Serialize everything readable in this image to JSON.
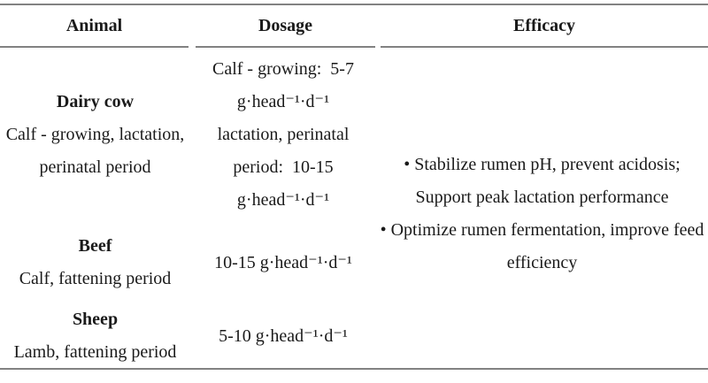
{
  "colors": {
    "text": "#1a1a1a",
    "rule": "#828282"
  },
  "table": {
    "headers": [
      {
        "label": "Animal"
      },
      {
        "label": "Dosage"
      },
      {
        "label": "Efficacy"
      }
    ],
    "rows": [
      {
        "animal": {
          "name": "Dairy cow",
          "detail_lines": [
            "Calf - growing, lactation,",
            "perinatal period"
          ]
        },
        "dosage_lines": [
          "Calf - growing:  5-7",
          "g·head⁻¹·d⁻¹",
          "lactation, perinatal",
          "period:  10-15",
          "g·head⁻¹·d⁻¹"
        ]
      },
      {
        "animal": {
          "name": "Beef",
          "detail_lines": [
            "Calf, fattening period"
          ]
        },
        "dosage_lines": [
          "10-15 g·head⁻¹·d⁻¹"
        ]
      },
      {
        "animal": {
          "name": "Sheep",
          "detail_lines": [
            "Lamb, fattening period"
          ]
        },
        "dosage_lines": [
          "5-10 g·head⁻¹·d⁻¹"
        ]
      }
    ],
    "efficacy_lines": [
      "• Stabilize rumen pH, prevent acidosis;",
      "Support peak lactation performance",
      "• Optimize rumen fermentation, improve feed",
      "efficiency"
    ]
  }
}
